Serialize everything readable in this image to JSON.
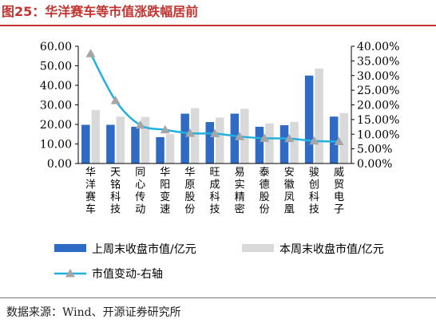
{
  "figure": {
    "title": "图25：华洋赛车等市值涨跌幅居前",
    "source": "数据来源：Wind、开源证券研究所"
  },
  "colors": {
    "title": "#c0342f",
    "series_prev": "#2f6bc4",
    "series_curr": "#d9d9d9",
    "series_change_line": "#22b0e0",
    "series_change_marker": "#a6a6a6"
  },
  "chart_data": {
    "type": "bar",
    "title": "",
    "categories": [
      "华洋赛车",
      "天铭科技",
      "同心传动",
      "华阳变速",
      "华原股份",
      "旺成科技",
      "易实精密",
      "泰德股份",
      "安徽凤凰",
      "骏创科技",
      "威贸电子"
    ],
    "series": [
      {
        "name": "上周末收盘市值/亿元",
        "type": "bar",
        "axis": "left",
        "values": [
          19.8,
          19.8,
          18.8,
          13.5,
          25.5,
          21.2,
          25.5,
          18.8,
          19.6,
          45.0,
          24.0
        ]
      },
      {
        "name": "本周末收盘市值/亿元",
        "type": "bar",
        "axis": "left",
        "values": [
          27.3,
          24.0,
          23.8,
          15.0,
          28.3,
          23.5,
          28.0,
          20.5,
          21.3,
          48.6,
          25.8
        ]
      },
      {
        "name": "市值变动-右轴",
        "type": "line",
        "axis": "right",
        "values": [
          0.375,
          0.215,
          0.131,
          0.115,
          0.103,
          0.102,
          0.092,
          0.086,
          0.085,
          0.077,
          0.075
        ]
      }
    ],
    "left_axis": {
      "ylim": [
        0,
        60
      ],
      "ticks": [
        "0.00",
        "10.00",
        "20.00",
        "30.00",
        "40.00",
        "50.00",
        "60.00"
      ]
    },
    "right_axis": {
      "ylim": [
        0,
        0.4
      ],
      "ticks": [
        "0.00%",
        "5.00%",
        "10.00%",
        "15.00%",
        "20.00%",
        "25.00%",
        "30.00%",
        "35.00%",
        "40.00%"
      ]
    },
    "grid": false,
    "legend": {
      "placement": "bottom"
    }
  }
}
